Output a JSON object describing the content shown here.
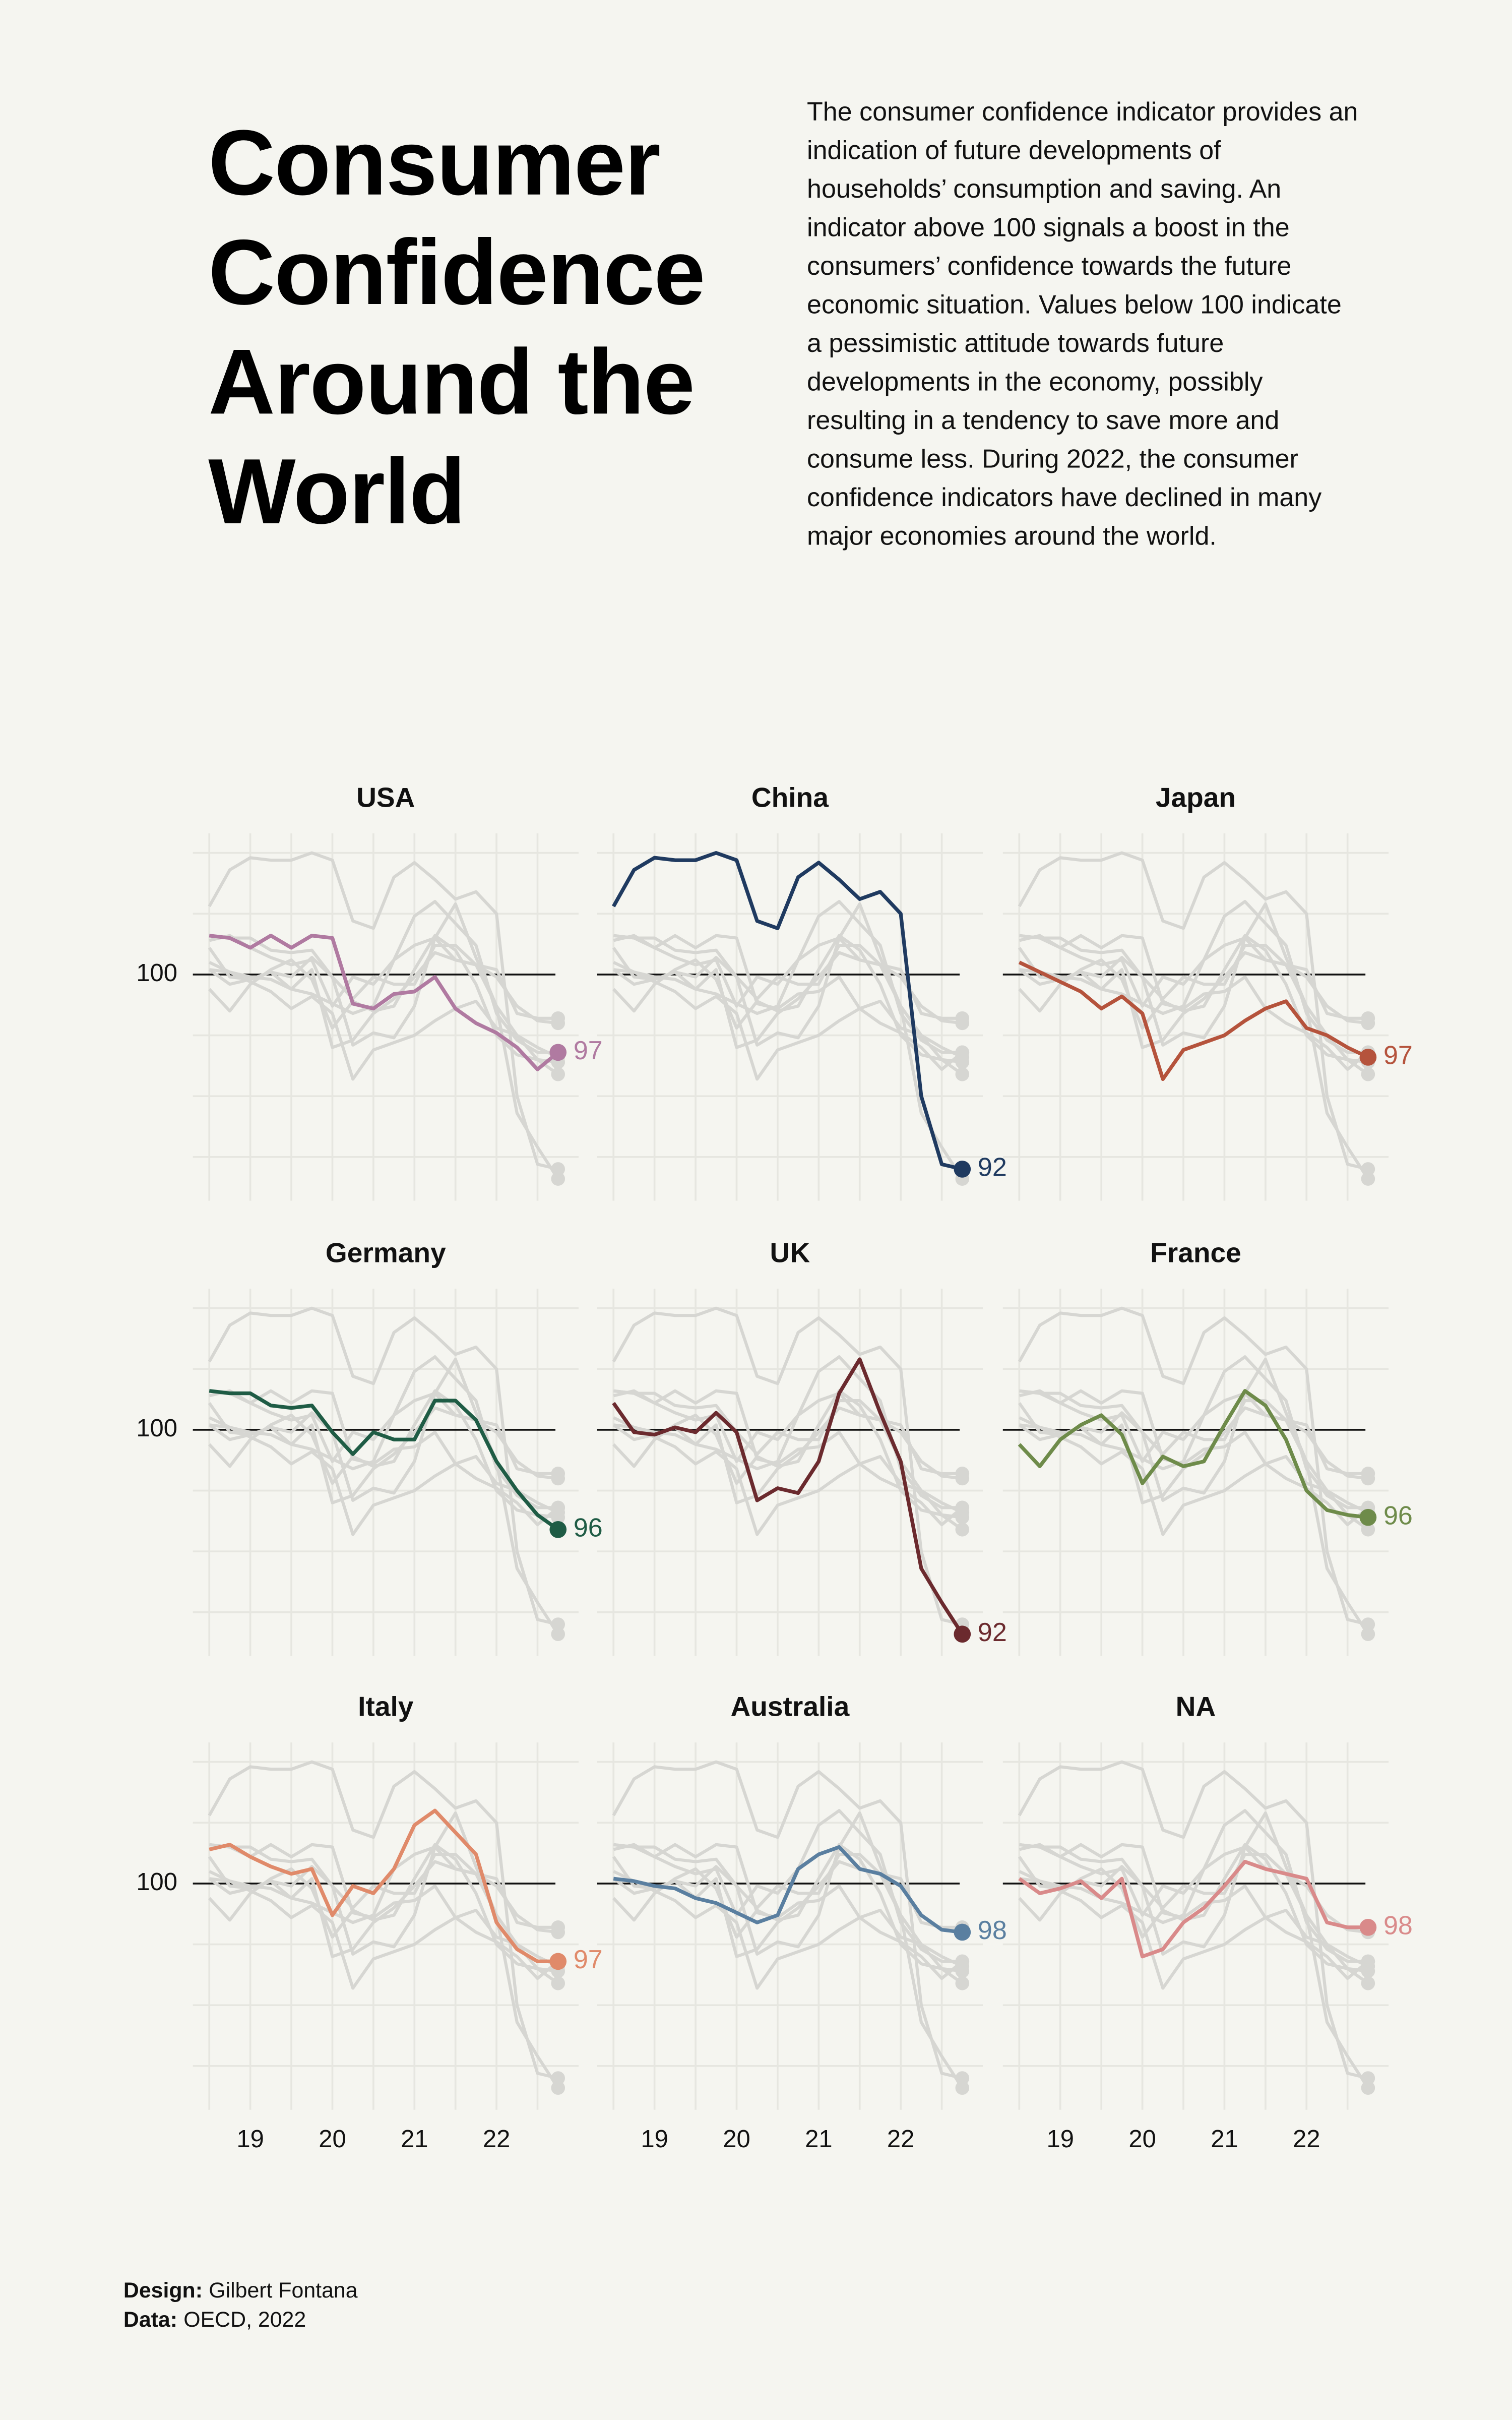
{
  "chart_data": {
    "type": "line",
    "title": "Consumer Confidence Around the World",
    "subtitle": "The consumer confidence indicator provides an indication of future developments of households’ consumption and saving. An indicator above 100 signals a boost in the consumers’ confidence towards the future economic situation. Values below 100 indicate a pessimistic attitude towards future developments in the economy, possibly resulting in a tendency to save more and consume less. During 2022, the consumer confidence indicators have declined in many major economies around the world.",
    "credits": [
      {
        "label": "Design:",
        "text": "Gilbert Fontana"
      },
      {
        "label": "Data:",
        "text": "OECD, 2022"
      }
    ],
    "x": [
      2018.5,
      2018.75,
      2019,
      2019.25,
      2019.5,
      2019.75,
      2020,
      2020.25,
      2020.5,
      2020.75,
      2021,
      2021.25,
      2021.5,
      2021.75,
      2022,
      2022.25,
      2022.5,
      2022.75
    ],
    "xlim": [
      2018.3,
      2023
    ],
    "xticks": [
      {
        "value": 2019,
        "label": "19"
      },
      {
        "value": 2020,
        "label": "20"
      },
      {
        "value": 2021,
        "label": "21"
      },
      {
        "value": 2022,
        "label": "22"
      }
    ],
    "xgrid": [
      2018.5,
      2019,
      2019.5,
      2020,
      2020.5,
      2021,
      2021.5,
      2022,
      2022.5
    ],
    "ylim": [
      90.7,
      105.8
    ],
    "yticks": [
      100
    ],
    "ygrid": [
      92.5,
      95,
      97.5,
      102.5,
      105
    ],
    "grid": true,
    "series": [
      {
        "name": "USA",
        "color": "#b07aa1",
        "values": [
          101.6,
          101.5,
          101.1,
          101.6,
          101.1,
          101.6,
          101.5,
          98.8,
          98.6,
          99.2,
          99.3,
          99.9,
          98.6,
          98.0,
          97.6,
          97.0,
          96.1,
          96.8
        ],
        "value_labels": [
          null,
          null,
          null,
          null,
          null,
          null,
          null,
          null,
          null,
          null,
          null,
          null,
          null,
          null,
          null,
          null,
          null,
          "97"
        ]
      },
      {
        "name": "China",
        "color": "#1f3a60",
        "values": [
          102.8,
          104.3,
          104.8,
          104.7,
          104.7,
          105.0,
          104.7,
          102.2,
          101.9,
          104.0,
          104.6,
          103.9,
          103.1,
          103.4,
          102.5,
          95.0,
          92.2,
          92.0
        ],
        "value_labels": [
          null,
          null,
          null,
          null,
          null,
          null,
          null,
          null,
          null,
          null,
          null,
          null,
          null,
          null,
          null,
          null,
          null,
          "92"
        ]
      },
      {
        "name": "Japan",
        "color": "#b5533c",
        "values": [
          100.5,
          100.1,
          99.7,
          99.3,
          98.6,
          99.1,
          98.4,
          95.7,
          96.9,
          97.2,
          97.5,
          98.1,
          98.6,
          98.9,
          97.8,
          97.5,
          97.0,
          96.6
        ],
        "value_labels": [
          null,
          null,
          null,
          null,
          null,
          null,
          null,
          null,
          null,
          null,
          null,
          null,
          null,
          null,
          null,
          null,
          null,
          "97"
        ]
      },
      {
        "name": "Germany",
        "color": "#1f5c45",
        "values": [
          101.6,
          101.5,
          101.5,
          101.0,
          100.9,
          101.0,
          99.9,
          99.0,
          99.9,
          99.6,
          99.6,
          101.2,
          101.2,
          100.4,
          98.7,
          97.5,
          96.5,
          95.9
        ],
        "value_labels": [
          null,
          null,
          null,
          null,
          null,
          null,
          null,
          null,
          null,
          null,
          null,
          null,
          null,
          null,
          null,
          null,
          null,
          "96"
        ]
      },
      {
        "name": "UK",
        "color": "#6b2a2e",
        "values": [
          101.1,
          99.9,
          99.8,
          100.1,
          99.9,
          100.7,
          99.9,
          97.1,
          97.6,
          97.4,
          98.7,
          101.5,
          102.9,
          100.7,
          98.7,
          94.3,
          92.9,
          91.6
        ],
        "value_labels": [
          null,
          null,
          null,
          null,
          null,
          null,
          null,
          null,
          null,
          null,
          null,
          null,
          null,
          null,
          null,
          null,
          null,
          "92"
        ]
      },
      {
        "name": "France",
        "color": "#6e8b4a",
        "values": [
          99.4,
          98.5,
          99.6,
          100.2,
          100.6,
          99.8,
          97.8,
          98.9,
          98.5,
          98.7,
          100.2,
          101.6,
          101.0,
          99.6,
          97.5,
          96.7,
          96.5,
          96.4
        ],
        "value_labels": [
          null,
          null,
          null,
          null,
          null,
          null,
          null,
          null,
          null,
          null,
          null,
          null,
          null,
          null,
          null,
          null,
          null,
          "96"
        ]
      },
      {
        "name": "Italy",
        "color": "#e08a6a",
        "values": [
          101.4,
          101.6,
          101.1,
          100.7,
          100.4,
          100.6,
          98.7,
          99.9,
          99.6,
          100.6,
          102.4,
          103.0,
          102.1,
          101.2,
          98.4,
          97.3,
          96.8,
          96.8
        ],
        "value_labels": [
          null,
          null,
          null,
          null,
          null,
          null,
          null,
          null,
          null,
          null,
          null,
          null,
          null,
          null,
          null,
          null,
          null,
          "97"
        ]
      },
      {
        "name": "Australia",
        "color": "#5a7fa0",
        "values": [
          100.2,
          100.1,
          99.9,
          99.8,
          99.4,
          99.2,
          98.8,
          98.4,
          98.7,
          100.6,
          101.2,
          101.5,
          100.6,
          100.4,
          99.9,
          98.7,
          98.1,
          98.0
        ],
        "value_labels": [
          null,
          null,
          null,
          null,
          null,
          null,
          null,
          null,
          null,
          null,
          null,
          null,
          null,
          null,
          null,
          null,
          null,
          "98"
        ]
      },
      {
        "name": "NA",
        "color": "#d98a8a",
        "values": [
          100.2,
          99.6,
          99.8,
          100.1,
          99.4,
          100.2,
          97.0,
          97.3,
          98.4,
          99.0,
          99.9,
          100.9,
          100.6,
          100.4,
          100.2,
          98.4,
          98.2,
          98.2
        ],
        "value_labels": [
          null,
          null,
          null,
          null,
          null,
          null,
          null,
          null,
          null,
          null,
          null,
          null,
          null,
          null,
          null,
          null,
          null,
          "98"
        ]
      }
    ]
  }
}
